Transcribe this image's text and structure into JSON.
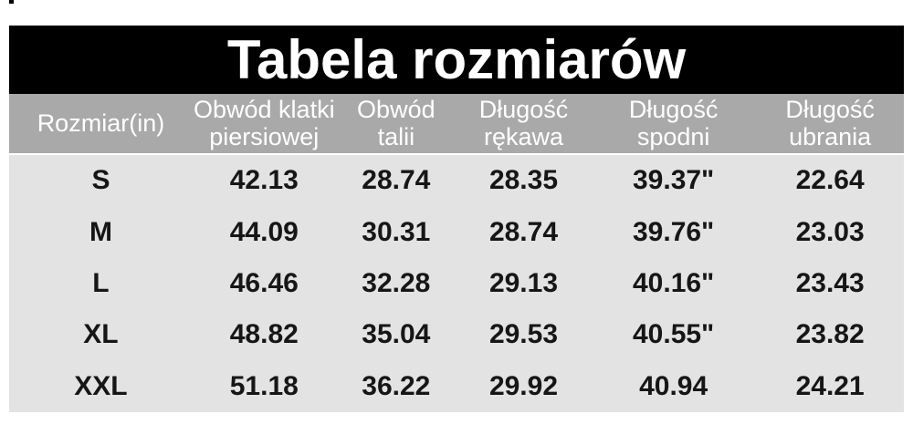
{
  "title": {
    "text": "Tabela rozmiarów"
  },
  "colors": {
    "page_bg": "#ffffff",
    "title_bg": "#000000",
    "title_text": "#ffffff",
    "header_bg": "#a9a9a9",
    "header_text": "#ffffff",
    "body_bg": "#e3e3e3",
    "body_text": "#161616"
  },
  "table": {
    "columns": [
      {
        "label": "Rozmiar(in)",
        "lines": [
          "Rozmiar(in)"
        ]
      },
      {
        "label": "Obwód klatki piersiowej",
        "lines": [
          "Obwód klatki",
          "piersiowej"
        ]
      },
      {
        "label": "Obwód talii",
        "lines": [
          "Obwód",
          "talii"
        ]
      },
      {
        "label": "Długość rękawa",
        "lines": [
          "Długość",
          "rękawa"
        ]
      },
      {
        "label": "Długość spodni",
        "lines": [
          "Długość",
          "spodni"
        ]
      },
      {
        "label": "Długość ubrania",
        "lines": [
          "Długość",
          "ubrania"
        ]
      }
    ],
    "rows": [
      {
        "size": "S",
        "chest": "42.13",
        "waist": "28.74",
        "sleeve": "28.35",
        "pants": "39.37\"",
        "garment": "22.64"
      },
      {
        "size": "M",
        "chest": "44.09",
        "waist": "30.31",
        "sleeve": "28.74",
        "pants": "39.76\"",
        "garment": "23.03"
      },
      {
        "size": "L",
        "chest": "46.46",
        "waist": "32.28",
        "sleeve": "29.13",
        "pants": "40.16\"",
        "garment": "23.43"
      },
      {
        "size": "XL",
        "chest": "48.82",
        "waist": "35.04",
        "sleeve": "29.53",
        "pants": "40.55\"",
        "garment": "23.82"
      },
      {
        "size": "XXL",
        "chest": "51.18",
        "waist": "36.22",
        "sleeve": "29.92",
        "pants": "40.94",
        "garment": "24.21"
      }
    ]
  },
  "chart_data": {
    "type": "table",
    "title": "Tabela rozmiarów",
    "columns": [
      "Rozmiar(in)",
      "Obwód klatki piersiowej",
      "Obwód talii",
      "Długość rękawa",
      "Długość spodni",
      "Długość ubrania"
    ],
    "rows": [
      [
        "S",
        "42.13",
        "28.74",
        "28.35",
        "39.37\"",
        "22.64"
      ],
      [
        "M",
        "44.09",
        "30.31",
        "28.74",
        "39.76\"",
        "23.03"
      ],
      [
        "L",
        "46.46",
        "32.28",
        "29.13",
        "40.16\"",
        "23.43"
      ],
      [
        "XL",
        "48.82",
        "35.04",
        "29.53",
        "40.55\"",
        "23.82"
      ],
      [
        "XXL",
        "51.18",
        "36.22",
        "29.92",
        "40.94",
        "24.21"
      ]
    ]
  }
}
